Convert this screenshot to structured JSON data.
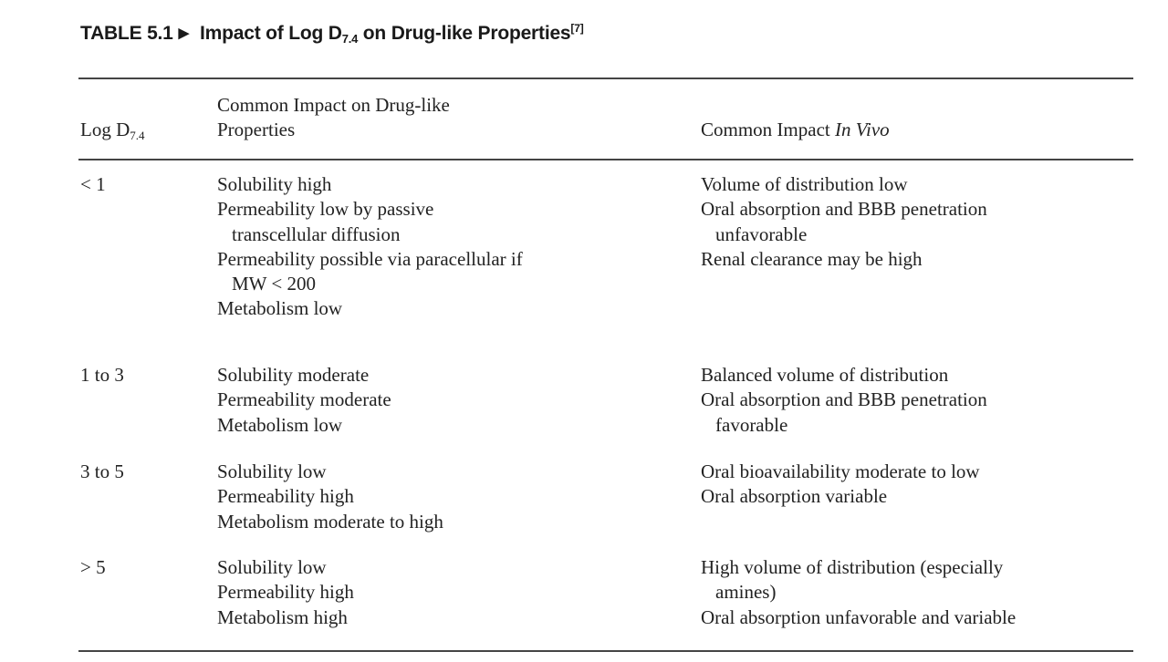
{
  "title": {
    "label": "TABLE 5.1",
    "arrow": "▶",
    "text_pre": "Impact of Log D",
    "text_sub": "7.4",
    "text_post": " on Drug-like Properties",
    "ref": "[7]"
  },
  "header": {
    "col1_pre": "Log D",
    "col1_sub": "7.4",
    "col2_line1": "Common Impact on Drug-like",
    "col2_line2": "Properties",
    "col3_pre": "Common Impact ",
    "col3_em": "In Vivo"
  },
  "rows": [
    {
      "logd": "< 1",
      "properties": [
        [
          "Solubility high"
        ],
        [
          "Permeability low by passive",
          "transcellular diffusion"
        ],
        [
          "Permeability possible via paracellular if",
          "MW < 200"
        ],
        [
          "Metabolism low"
        ]
      ],
      "in_vivo": [
        [
          "Volume of distribution low"
        ],
        [
          "Oral absorption and BBB penetration",
          "unfavorable"
        ],
        [
          "Renal clearance may be high"
        ]
      ]
    },
    {
      "logd": "1 to 3",
      "properties": [
        [
          "Solubility moderate"
        ],
        [
          "Permeability moderate"
        ],
        [
          "Metabolism low"
        ]
      ],
      "in_vivo": [
        [
          "Balanced volume of distribution"
        ],
        [
          "Oral absorption and BBB penetration",
          "favorable"
        ]
      ]
    },
    {
      "logd": "3 to 5",
      "properties": [
        [
          "Solubility low"
        ],
        [
          "Permeability high"
        ],
        [
          "Metabolism moderate to high"
        ]
      ],
      "in_vivo": [
        [
          "Oral bioavailability moderate to low"
        ],
        [
          "Oral absorption variable"
        ]
      ]
    },
    {
      "logd": "> 5",
      "properties": [
        [
          "Solubility low"
        ],
        [
          "Permeability high"
        ],
        [
          "Metabolism high"
        ]
      ],
      "in_vivo": [
        [
          "High volume of distribution (especially",
          "amines)"
        ],
        [
          "Oral absorption unfavorable and variable"
        ]
      ]
    }
  ]
}
